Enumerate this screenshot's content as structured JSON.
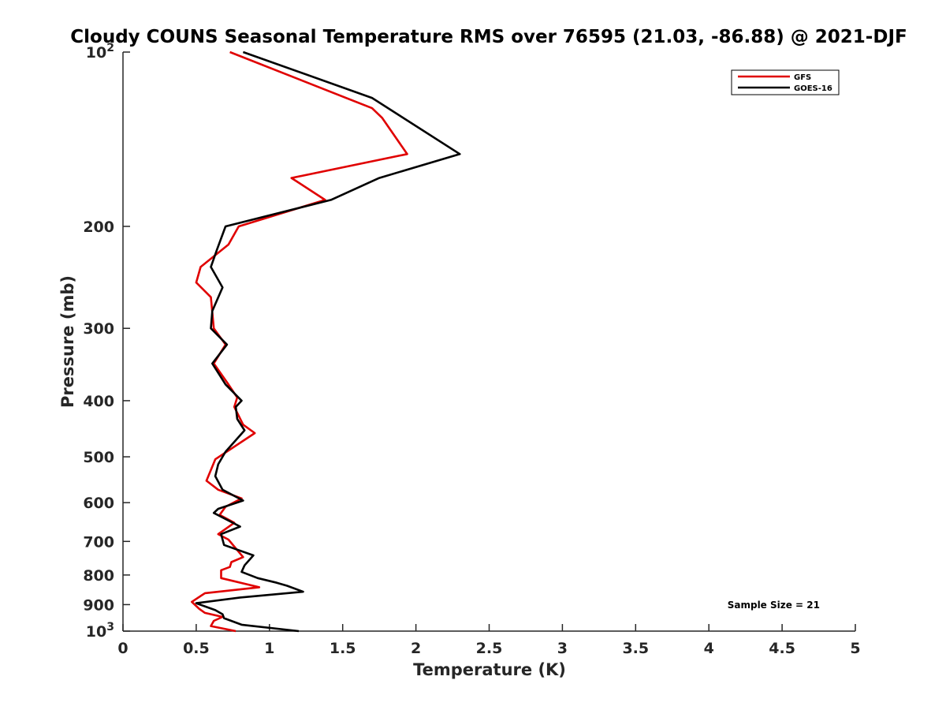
{
  "chart_data": {
    "type": "line",
    "title": "Cloudy COUNS Seasonal Temperature RMS over 76595 (21.03, -86.88) @ 2021-DJF",
    "xlabel": "Temperature (K)",
    "ylabel": "Pressure (mb)",
    "xlim": [
      0,
      5
    ],
    "ylim": [
      100,
      1000
    ],
    "y_scale": "log",
    "y_reversed": true,
    "x_ticks": [
      {
        "value": 0,
        "label": "0"
      },
      {
        "value": 0.5,
        "label": "0.5"
      },
      {
        "value": 1,
        "label": "1"
      },
      {
        "value": 1.5,
        "label": "1.5"
      },
      {
        "value": 2,
        "label": "2"
      },
      {
        "value": 2.5,
        "label": "2.5"
      },
      {
        "value": 3,
        "label": "3"
      },
      {
        "value": 3.5,
        "label": "3.5"
      },
      {
        "value": 4,
        "label": "4"
      },
      {
        "value": 4.5,
        "label": "4.5"
      },
      {
        "value": 5,
        "label": "5"
      }
    ],
    "y_ticks": [
      {
        "value": 100,
        "base": "10",
        "exp": "2"
      },
      {
        "value": 200,
        "label": "200"
      },
      {
        "value": 300,
        "label": "300"
      },
      {
        "value": 400,
        "label": "400"
      },
      {
        "value": 500,
        "label": "500"
      },
      {
        "value": 600,
        "label": "600"
      },
      {
        "value": 700,
        "label": "700"
      },
      {
        "value": 800,
        "label": "800"
      },
      {
        "value": 900,
        "label": "900"
      },
      {
        "value": 1000,
        "base": "10",
        "exp": "3"
      }
    ],
    "grid": false,
    "legend_position": "top-right",
    "series": [
      {
        "name": "GFS",
        "color": "#e00000",
        "points": [
          [
            0.73,
            100
          ],
          [
            1.7,
            125
          ],
          [
            1.77,
            130
          ],
          [
            1.94,
            150
          ],
          [
            1.15,
            165
          ],
          [
            1.38,
            180
          ],
          [
            0.79,
            200
          ],
          [
            0.72,
            215
          ],
          [
            0.53,
            235
          ],
          [
            0.5,
            250
          ],
          [
            0.6,
            265
          ],
          [
            0.62,
            300
          ],
          [
            0.7,
            320
          ],
          [
            0.62,
            345
          ],
          [
            0.72,
            375
          ],
          [
            0.78,
            395
          ],
          [
            0.76,
            410
          ],
          [
            0.82,
            440
          ],
          [
            0.9,
            455
          ],
          [
            0.63,
            505
          ],
          [
            0.57,
            550
          ],
          [
            0.65,
            570
          ],
          [
            0.81,
            590
          ],
          [
            0.7,
            610
          ],
          [
            0.66,
            630
          ],
          [
            0.76,
            650
          ],
          [
            0.65,
            680
          ],
          [
            0.72,
            695
          ],
          [
            0.82,
            745
          ],
          [
            0.74,
            760
          ],
          [
            0.73,
            775
          ],
          [
            0.67,
            785
          ],
          [
            0.67,
            810
          ],
          [
            0.93,
            840
          ],
          [
            0.56,
            860
          ],
          [
            0.47,
            890
          ],
          [
            0.52,
            915
          ],
          [
            0.56,
            930
          ],
          [
            0.68,
            945
          ],
          [
            0.62,
            960
          ],
          [
            0.6,
            980
          ],
          [
            0.77,
            1000
          ]
        ]
      },
      {
        "name": "GOES-16",
        "color": "#000000",
        "points": [
          [
            0.82,
            100
          ],
          [
            1.7,
            120
          ],
          [
            2.3,
            150
          ],
          [
            1.75,
            165
          ],
          [
            1.42,
            180
          ],
          [
            0.7,
            200
          ],
          [
            0.64,
            220
          ],
          [
            0.6,
            235
          ],
          [
            0.68,
            255
          ],
          [
            0.61,
            280
          ],
          [
            0.6,
            300
          ],
          [
            0.71,
            320
          ],
          [
            0.61,
            345
          ],
          [
            0.7,
            375
          ],
          [
            0.81,
            400
          ],
          [
            0.77,
            410
          ],
          [
            0.78,
            430
          ],
          [
            0.83,
            450
          ],
          [
            0.7,
            490
          ],
          [
            0.65,
            515
          ],
          [
            0.63,
            540
          ],
          [
            0.68,
            570
          ],
          [
            0.82,
            595
          ],
          [
            0.65,
            615
          ],
          [
            0.62,
            625
          ],
          [
            0.8,
            660
          ],
          [
            0.67,
            680
          ],
          [
            0.69,
            710
          ],
          [
            0.89,
            740
          ],
          [
            0.83,
            770
          ],
          [
            0.81,
            790
          ],
          [
            0.92,
            810
          ],
          [
            1.05,
            825
          ],
          [
            1.12,
            835
          ],
          [
            1.23,
            855
          ],
          [
            0.8,
            875
          ],
          [
            0.5,
            895
          ],
          [
            0.63,
            920
          ],
          [
            0.68,
            935
          ],
          [
            0.69,
            950
          ],
          [
            0.81,
            975
          ],
          [
            1.2,
            1000
          ]
        ]
      }
    ],
    "annotations": [
      {
        "text": "Sample Size = 21",
        "position": "bottom-right"
      }
    ]
  }
}
